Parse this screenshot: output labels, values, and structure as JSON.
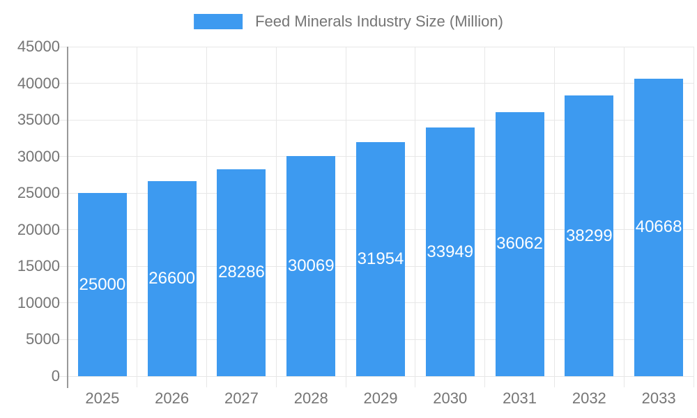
{
  "legend": {
    "label": "Feed Minerals Industry Size (Million)"
  },
  "chart_data": {
    "type": "bar",
    "title": "Feed Minerals Industry Size (Million)",
    "series_name": "Feed Minerals Industry Size (Million)",
    "categories": [
      "2025",
      "2026",
      "2027",
      "2028",
      "2029",
      "2030",
      "2031",
      "2032",
      "2033"
    ],
    "values": [
      25000,
      26600,
      28286,
      30069,
      31954,
      33949,
      36062,
      38299,
      40668
    ],
    "xlabel": "",
    "ylabel": "",
    "ylim": [
      0,
      45000
    ],
    "ytick_step": 5000,
    "ytick_labels": [
      "0",
      "5000",
      "10000",
      "15000",
      "20000",
      "25000",
      "30000",
      "35000",
      "40000",
      "45000"
    ],
    "grid": true,
    "legend_position": "top-center",
    "colors": {
      "bar": "#3D9AF0",
      "value_label": "#FFFFFF",
      "axis_text": "#757575",
      "grid_line": "#E7E7E7",
      "axis_line": "#999999"
    }
  }
}
